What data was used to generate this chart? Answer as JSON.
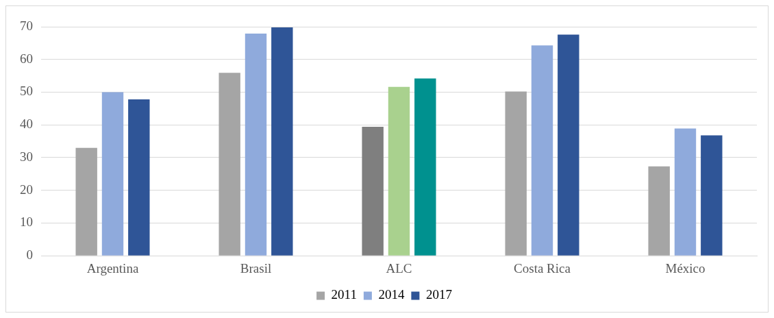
{
  "chart_data": {
    "type": "bar",
    "categories": [
      "Argentina",
      "Brasil",
      "ALC",
      "Costa Rica",
      "México"
    ],
    "series": [
      {
        "name": "2011",
        "color": "#a5a5a5",
        "colors": [
          "#a5a5a5",
          "#a5a5a5",
          "#7f7f7f",
          "#a5a5a5",
          "#a5a5a5"
        ],
        "values": [
          33,
          55.9,
          39.4,
          50.2,
          27.3
        ]
      },
      {
        "name": "2014",
        "color": "#8faadc",
        "colors": [
          "#8faadc",
          "#8faadc",
          "#a9d18e",
          "#8faadc",
          "#8faadc"
        ],
        "values": [
          50,
          67.9,
          51.6,
          64.3,
          38.9
        ]
      },
      {
        "name": "2017",
        "color": "#2f5597",
        "colors": [
          "#2f5597",
          "#2f5597",
          "#00918f",
          "#2f5597",
          "#2f5597"
        ],
        "values": [
          47.8,
          69.8,
          54.2,
          67.6,
          36.8
        ]
      }
    ],
    "ylim": [
      0,
      70
    ],
    "yticks": [
      0,
      10,
      20,
      30,
      40,
      50,
      60,
      70
    ],
    "grid": "y",
    "legend": "bottom"
  }
}
